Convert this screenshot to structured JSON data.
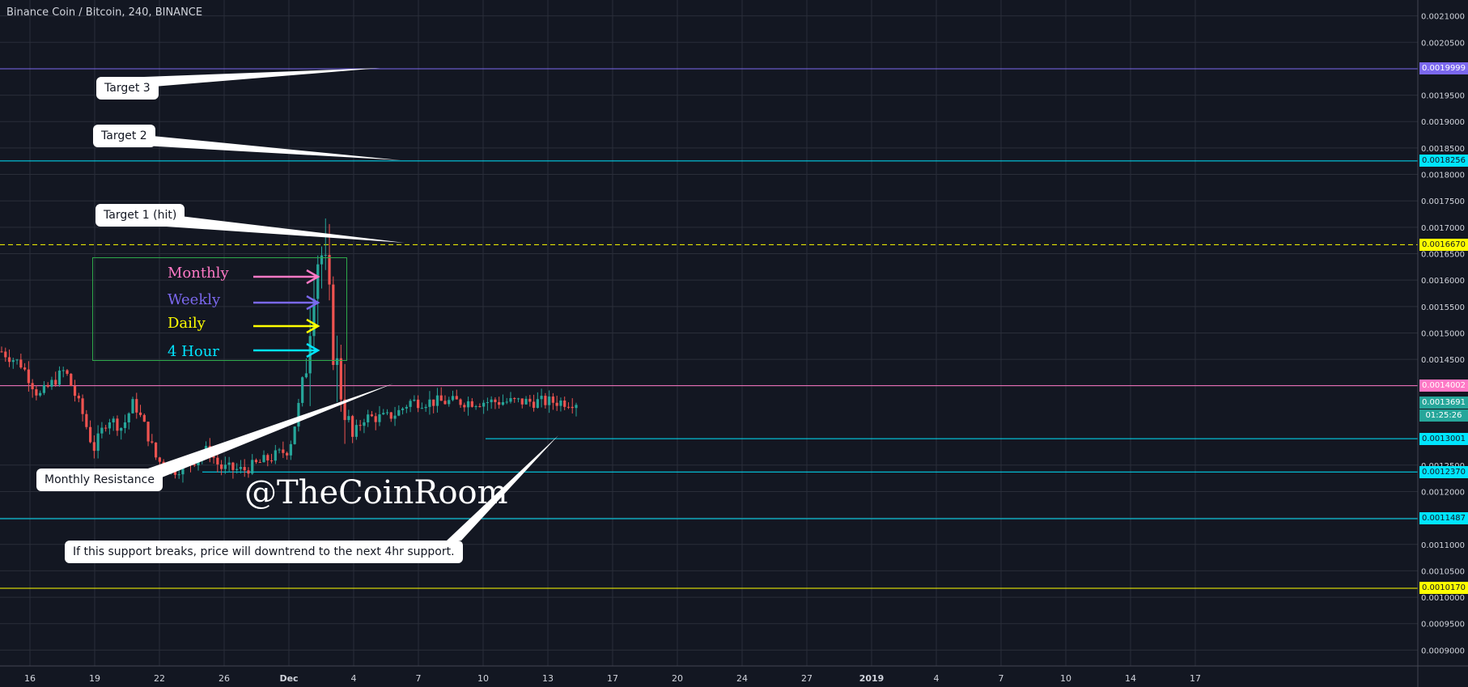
{
  "symbol": {
    "title": "Binance Coin / Bitcoin, 240, BINANCE"
  },
  "watermark": "@TheCoinRoom",
  "colors": {
    "background": "#131722",
    "grid": "#2a2e39",
    "up": "#26a69a",
    "down": "#ef5350",
    "monthly": "#ff79c6",
    "weekly": "#7b68ee",
    "daily": "#ffff00",
    "hour4": "#00e5ff",
    "legend_border": "#2ea84a"
  },
  "annotations": {
    "target3": "Target 3",
    "target2": "Target 2",
    "target1": "Target 1 (hit)",
    "monthly_resistance": "Monthly Resistance",
    "support_note": "If this support breaks, price will downtrend to the next 4hr support."
  },
  "legend": {
    "items": [
      {
        "label": "Monthly",
        "color": "#ff79c6"
      },
      {
        "label": "Weekly",
        "color": "#7b68ee"
      },
      {
        "label": "Daily",
        "color": "#ffff00"
      },
      {
        "label": "4 Hour",
        "color": "#00e5ff"
      }
    ]
  },
  "price_tags": [
    {
      "value": "0.0019999",
      "bg": "#7b68ee",
      "fg": "#ffffff"
    },
    {
      "value": "0.0018256",
      "bg": "#00e5ff",
      "fg": "#131722"
    },
    {
      "value": "0.0016670",
      "bg": "#ffff00",
      "fg": "#131722"
    },
    {
      "value": "0.0014002",
      "bg": "#ff79c6",
      "fg": "#ffffff"
    },
    {
      "value": "0.0013691",
      "bg": "#26a69a",
      "fg": "#ffffff"
    },
    {
      "value": "0.0013001",
      "bg": "#00e5ff",
      "fg": "#131722"
    },
    {
      "value": "0.0012370",
      "bg": "#00e5ff",
      "fg": "#131722"
    },
    {
      "value": "0.0011487",
      "bg": "#00e5ff",
      "fg": "#131722"
    },
    {
      "value": "0.0010170",
      "bg": "#ffff00",
      "fg": "#131722"
    }
  ],
  "countdown": "01:25:26",
  "chart_data": {
    "type": "candlestick",
    "y_axis": {
      "ylim": [
        0.00087,
        0.00213
      ],
      "ticks": [
        "0.0021000",
        "0.0020500",
        "0.0019500",
        "0.0019000",
        "0.0018500",
        "0.0018000",
        "0.0017500",
        "0.0017000",
        "0.0016500",
        "0.0016000",
        "0.0015500",
        "0.0015000",
        "0.0014500",
        "0.0014000",
        "0.0012500",
        "0.0012000",
        "0.0011500",
        "0.0011000",
        "0.0010500",
        "0.0010000",
        "0.0009500",
        "0.0009000"
      ]
    },
    "x_axis": {
      "ticks": [
        "16",
        "19",
        "22",
        "26",
        "Dec",
        "4",
        "7",
        "10",
        "13",
        "17",
        "20",
        "24",
        "27",
        "2019",
        "4",
        "7",
        "10",
        "14",
        "17"
      ]
    },
    "levels": [
      {
        "price": 0.0019999,
        "timeframe": "Weekly",
        "color": "#7b68ee",
        "style": "solid"
      },
      {
        "price": 0.0018256,
        "timeframe": "4 Hour",
        "color": "#00e5ff",
        "style": "solid"
      },
      {
        "price": 0.001667,
        "timeframe": "Daily",
        "color": "#ffff00",
        "style": "dashed"
      },
      {
        "price": 0.0014002,
        "timeframe": "Monthly",
        "color": "#ff79c6",
        "style": "solid"
      },
      {
        "price": 0.0013001,
        "timeframe": "4 Hour",
        "color": "#00e5ff",
        "style": "solid"
      },
      {
        "price": 0.001237,
        "timeframe": "4 Hour",
        "color": "#00e5ff",
        "style": "solid"
      },
      {
        "price": 0.0011487,
        "timeframe": "4 Hour",
        "color": "#00e5ff",
        "style": "solid"
      },
      {
        "price": 0.001017,
        "timeframe": "Daily",
        "color": "#ffff00",
        "style": "solid"
      }
    ],
    "path": [
      [
        0,
        0.001465
      ],
      [
        0.035,
        0.00144
      ],
      [
        0.065,
        0.00138
      ],
      [
        0.11,
        0.00143
      ],
      [
        0.14,
        0.00135
      ],
      [
        0.16,
        0.00128
      ],
      [
        0.185,
        0.00134
      ],
      [
        0.21,
        0.00132
      ],
      [
        0.23,
        0.00137
      ],
      [
        0.25,
        0.00132
      ],
      [
        0.27,
        0.00126
      ],
      [
        0.3,
        0.00124
      ],
      [
        0.33,
        0.001255
      ],
      [
        0.36,
        0.00128
      ],
      [
        0.38,
        0.001245
      ],
      [
        0.42,
        0.00124
      ],
      [
        0.46,
        0.00126
      ],
      [
        0.48,
        0.00127
      ],
      [
        0.5,
        0.00128
      ],
      [
        0.515,
        0.00135
      ],
      [
        0.53,
        0.00145
      ],
      [
        0.545,
        0.00163
      ],
      [
        0.555,
        0.00166
      ],
      [
        0.565,
        0.0016
      ],
      [
        0.575,
        0.0015
      ],
      [
        0.585,
        0.00142
      ],
      [
        0.6,
        0.00136
      ],
      [
        0.61,
        0.0013
      ],
      [
        0.63,
        0.00134
      ],
      [
        0.65,
        0.00134
      ],
      [
        0.67,
        0.00134
      ],
      [
        0.69,
        0.00135
      ],
      [
        0.71,
        0.00137
      ]
    ],
    "candle_count": 150
  }
}
